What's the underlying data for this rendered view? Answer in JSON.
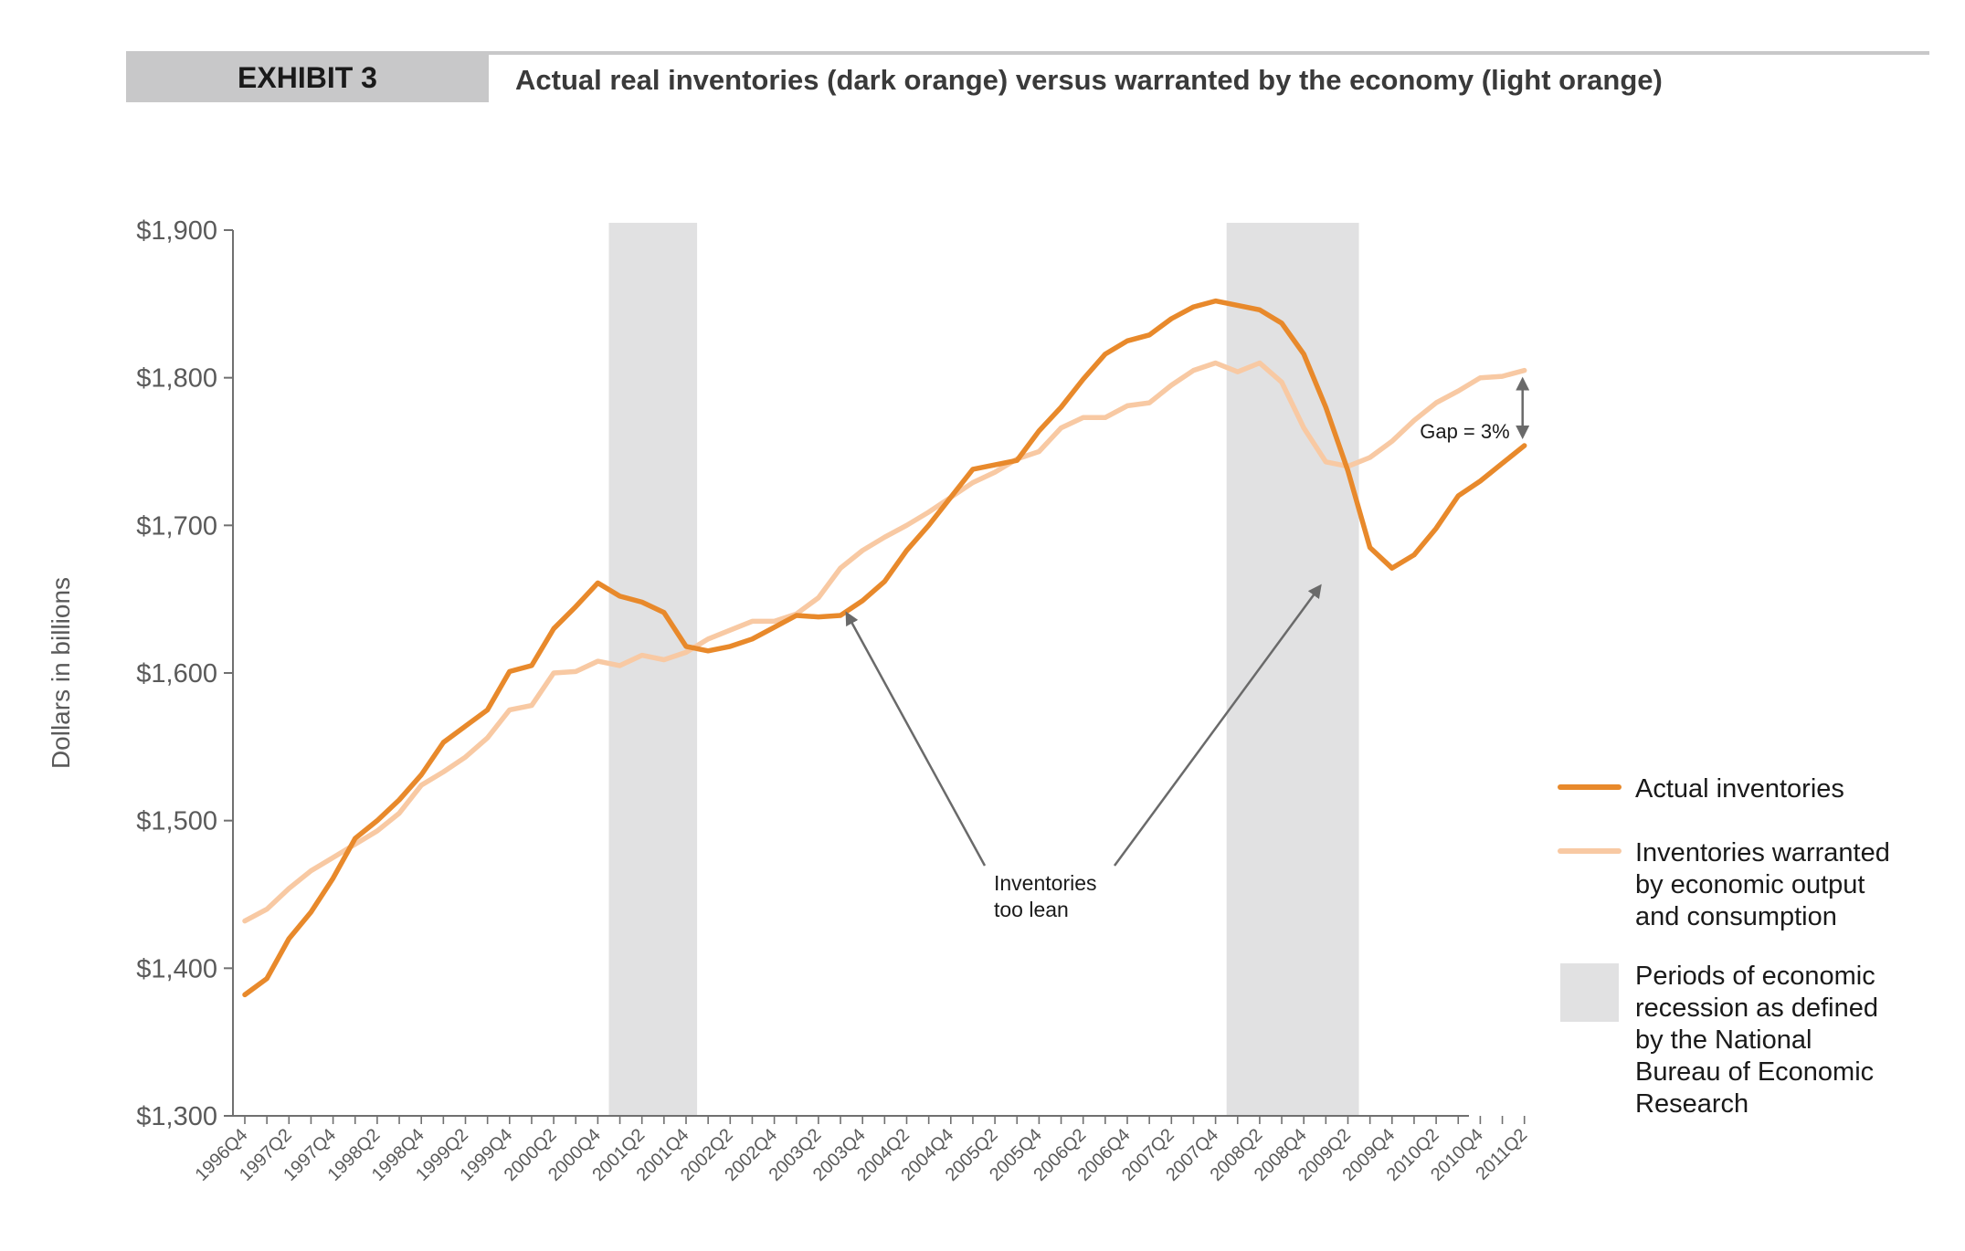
{
  "header": {
    "exhibit_label": "EXHIBIT 3",
    "title": "Actual real inventories (dark orange) versus warranted by the economy (light orange)"
  },
  "colors": {
    "actual": "#e8892b",
    "warranted": "#f8c9a3",
    "recession": "#e1e1e2",
    "header_bar": "#c8c8c9",
    "axis": "#707070",
    "tick_text": "#5a5a5a",
    "arrow": "#6a6a6a"
  },
  "chart_data": {
    "type": "line",
    "title": "Actual real inventories (dark orange) versus warranted by the economy (light orange)",
    "ylabel": "Dollars in billions",
    "xlabel": "",
    "ylim": [
      1300,
      1900
    ],
    "yticks": [
      1300,
      1400,
      1500,
      1600,
      1700,
      1800,
      1900
    ],
    "ytick_labels": [
      "$1,300",
      "$1,400",
      "$1,500",
      "$1,600",
      "$1,700",
      "$1,800",
      "$1,900"
    ],
    "x_tick_labels": [
      "1996Q4",
      "1997Q2",
      "1997Q4",
      "1998Q2",
      "1998Q4",
      "1999Q2",
      "1999Q4",
      "2000Q2",
      "2000Q4",
      "2001Q2",
      "2001Q4",
      "2002Q2",
      "2002Q4",
      "2003Q2",
      "2003Q4",
      "2004Q2",
      "2004Q4",
      "2005Q2",
      "2005Q4",
      "2006Q2",
      "2006Q4",
      "2007Q2",
      "2007Q4",
      "2008Q2",
      "2008Q4",
      "2009Q2",
      "2009Q4",
      "2010Q2",
      "2010Q4",
      "2011Q2"
    ],
    "x": [
      "1996Q4",
      "1997Q1",
      "1997Q2",
      "1997Q3",
      "1997Q4",
      "1998Q1",
      "1998Q2",
      "1998Q3",
      "1998Q4",
      "1999Q1",
      "1999Q2",
      "1999Q3",
      "1999Q4",
      "2000Q1",
      "2000Q2",
      "2000Q3",
      "2000Q4",
      "2001Q1",
      "2001Q2",
      "2001Q3",
      "2001Q4",
      "2002Q1",
      "2002Q2",
      "2002Q3",
      "2002Q4",
      "2003Q1",
      "2003Q2",
      "2003Q3",
      "2003Q4",
      "2004Q1",
      "2004Q2",
      "2004Q3",
      "2004Q4",
      "2005Q1",
      "2005Q2",
      "2005Q3",
      "2005Q4",
      "2006Q1",
      "2006Q2",
      "2006Q3",
      "2006Q4",
      "2007Q1",
      "2007Q2",
      "2007Q3",
      "2007Q4",
      "2008Q1",
      "2008Q2",
      "2008Q3",
      "2008Q4",
      "2009Q1",
      "2009Q2",
      "2009Q3",
      "2009Q4",
      "2010Q1",
      "2010Q2",
      "2010Q3",
      "2010Q4",
      "2011Q1",
      "2011Q2"
    ],
    "series": [
      {
        "name": "Actual inventories",
        "values": [
          1382,
          1393,
          1420,
          1438,
          1461,
          1488,
          1500,
          1514,
          1531,
          1553,
          1564,
          1575,
          1601,
          1605,
          1630,
          1645,
          1661,
          1652,
          1648,
          1641,
          1618,
          1615,
          1618,
          1623,
          1631,
          1639,
          1638,
          1639,
          1649,
          1662,
          1683,
          1700,
          1719,
          1738,
          1741,
          1744,
          1764,
          1780,
          1799,
          1816,
          1825,
          1829,
          1840,
          1848,
          1852,
          1849,
          1846,
          1837,
          1816,
          1780,
          1737,
          1685,
          1671,
          1680,
          1698,
          1720,
          1730,
          1742,
          1754
        ]
      },
      {
        "name": "Inventories warranted by economic output and consumption",
        "values": [
          1432,
          1440,
          1454,
          1466,
          1475,
          1484,
          1493,
          1505,
          1524,
          1533,
          1543,
          1556,
          1575,
          1578,
          1600,
          1601,
          1608,
          1605,
          1612,
          1609,
          1614,
          1623,
          1629,
          1635,
          1635,
          1640,
          1651,
          1671,
          1683,
          1692,
          1700,
          1709,
          1719,
          1729,
          1736,
          1745,
          1750,
          1766,
          1773,
          1773,
          1781,
          1783,
          1795,
          1805,
          1810,
          1804,
          1810,
          1797,
          1766,
          1743,
          1740,
          1746,
          1757,
          1771,
          1783,
          1791,
          1800,
          1801,
          1805
        ]
      }
    ],
    "recessions": [
      {
        "start": "2001Q1",
        "end": "2001Q4"
      },
      {
        "start": "2008Q1",
        "end": "2009Q2"
      }
    ],
    "annotations": {
      "gap": "Gap = 3%",
      "lean_line1": "Inventories",
      "lean_line2": "too lean"
    },
    "legend": {
      "placement": "right",
      "actual": "Actual inventories",
      "warranted_lines": [
        "Inventories warranted",
        "by economic output",
        "and consumption"
      ],
      "recession_lines": [
        "Periods of economic",
        "recession as defined",
        "by the National",
        "Bureau of Economic",
        "Research"
      ]
    },
    "grid": false
  }
}
